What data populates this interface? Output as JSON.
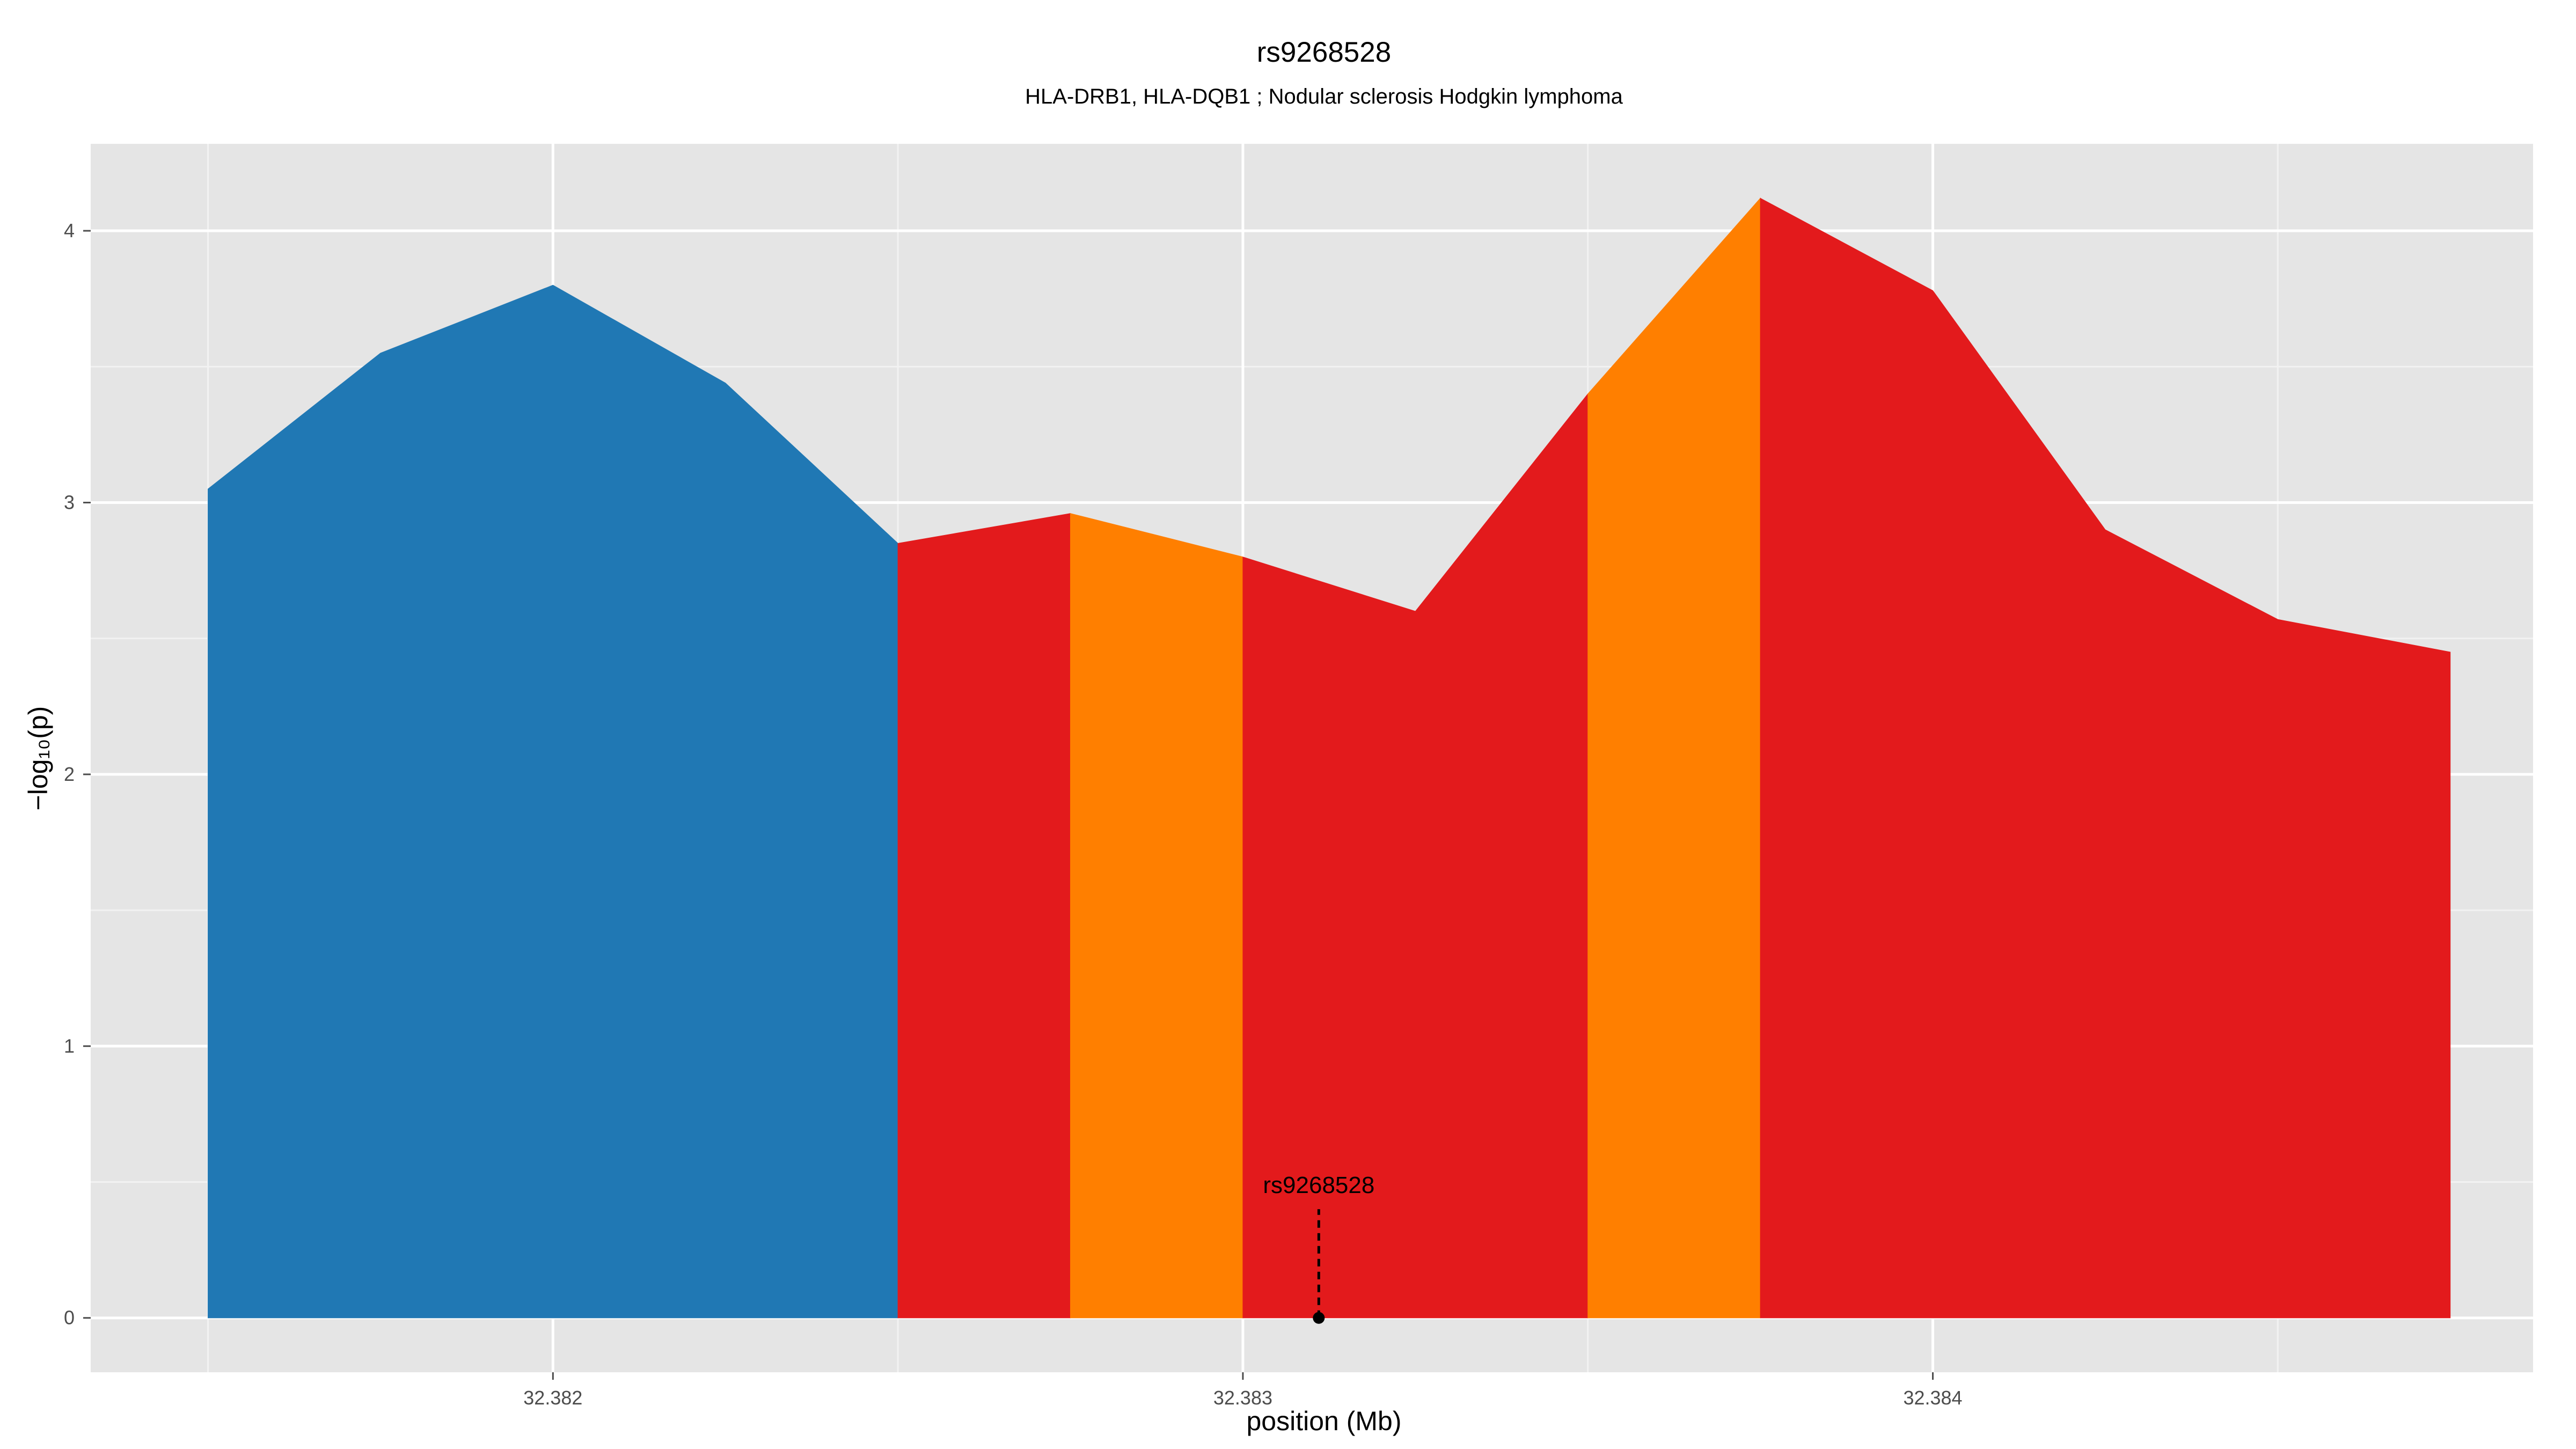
{
  "chart_data": {
    "type": "area",
    "title": "rs9268528",
    "subtitle": "HLA-DRB1, HLA-DQB1 ; Nodular sclerosis Hodgkin lymphoma",
    "xlabel": "position (Mb)",
    "ylabel": "−log₁₀(p)",
    "xlim": [
      32.38133,
      32.38487
    ],
    "ylim": [
      -0.2,
      4.32
    ],
    "x_ticks": [
      32.382,
      32.383,
      32.384
    ],
    "x_tick_labels": [
      "32.382",
      "32.383",
      "32.384"
    ],
    "y_ticks": [
      0,
      1,
      2,
      3,
      4
    ],
    "y_tick_labels": [
      "0",
      "1",
      "2",
      "3",
      "4"
    ],
    "grid": true,
    "points": [
      {
        "x": 32.3815,
        "y": 3.05
      },
      {
        "x": 32.38175,
        "y": 3.55
      },
      {
        "x": 32.382,
        "y": 3.8
      },
      {
        "x": 32.38225,
        "y": 3.44
      },
      {
        "x": 32.3825,
        "y": 2.85
      },
      {
        "x": 32.38275,
        "y": 2.96
      },
      {
        "x": 32.383,
        "y": 2.8
      },
      {
        "x": 32.38325,
        "y": 2.6
      },
      {
        "x": 32.3835,
        "y": 3.4
      },
      {
        "x": 32.38375,
        "y": 4.12
      },
      {
        "x": 32.384,
        "y": 3.78
      },
      {
        "x": 32.38425,
        "y": 2.9
      },
      {
        "x": 32.3845,
        "y": 2.57
      },
      {
        "x": 32.38475,
        "y": 2.45
      }
    ],
    "segments": [
      {
        "x0": 32.3815,
        "x1": 32.3825,
        "color": "#2078b4"
      },
      {
        "x0": 32.3825,
        "x1": 32.38275,
        "color": "#e31a1c"
      },
      {
        "x0": 32.38275,
        "x1": 32.383,
        "color": "#ff7f00"
      },
      {
        "x0": 32.383,
        "x1": 32.3835,
        "color": "#e31a1c"
      },
      {
        "x0": 32.3835,
        "x1": 32.38375,
        "color": "#ff7f00"
      },
      {
        "x0": 32.38375,
        "x1": 32.38475,
        "color": "#e31a1c"
      }
    ],
    "annotation": {
      "label": "rs9268528",
      "x": 32.38311,
      "y": 0,
      "line_top": 0.4
    }
  },
  "colors": {
    "panel_background": "#e5e5e5",
    "grid_major": "#ffffff",
    "grid_minor": "#f2f2f2"
  }
}
